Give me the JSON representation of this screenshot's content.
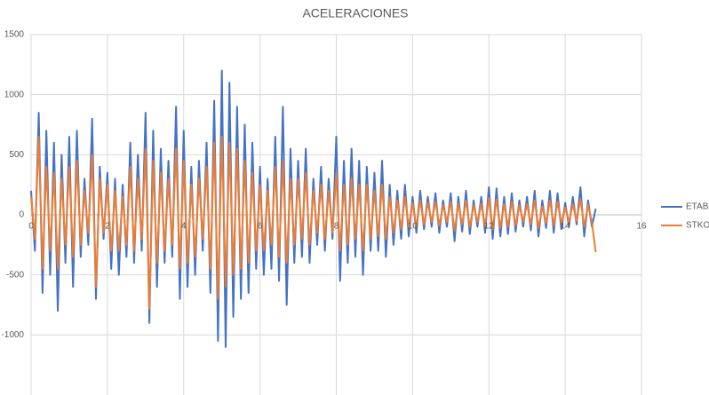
{
  "chart_data": {
    "type": "line",
    "title": "ACELERACIONES",
    "xlim": [
      0,
      16
    ],
    "xticks": [
      0,
      2,
      4,
      6,
      8,
      10,
      12,
      14,
      16
    ],
    "ylim": [
      -1500,
      1500
    ],
    "yticks": [
      -1000,
      -500,
      0,
      500,
      1000,
      1500
    ],
    "grid": true,
    "legend": "right",
    "x": [
      0,
      0.1,
      0.2,
      0.3,
      0.4,
      0.5,
      0.6,
      0.7,
      0.8,
      0.9,
      1,
      1.1,
      1.2,
      1.3,
      1.4,
      1.5,
      1.6,
      1.7,
      1.8,
      1.9,
      2,
      2.1,
      2.2,
      2.3,
      2.4,
      2.5,
      2.6,
      2.7,
      2.8,
      2.9,
      3,
      3.1,
      3.2,
      3.3,
      3.4,
      3.5,
      3.6,
      3.7,
      3.8,
      3.9,
      4,
      4.1,
      4.2,
      4.3,
      4.4,
      4.5,
      4.6,
      4.7,
      4.8,
      4.9,
      5,
      5.1,
      5.2,
      5.3,
      5.4,
      5.5,
      5.6,
      5.7,
      5.8,
      5.9,
      6,
      6.1,
      6.2,
      6.3,
      6.4,
      6.5,
      6.6,
      6.7,
      6.8,
      6.9,
      7,
      7.1,
      7.2,
      7.3,
      7.4,
      7.5,
      7.6,
      7.7,
      7.8,
      7.9,
      8,
      8.1,
      8.2,
      8.3,
      8.4,
      8.5,
      8.6,
      8.7,
      8.8,
      8.9,
      9,
      9.1,
      9.2,
      9.3,
      9.4,
      9.5,
      9.6,
      9.7,
      9.8,
      9.9,
      10,
      10.1,
      10.2,
      10.3,
      10.4,
      10.5,
      10.6,
      10.7,
      10.8,
      10.9,
      11,
      11.1,
      11.2,
      11.3,
      11.4,
      11.5,
      11.6,
      11.7,
      11.8,
      11.9,
      12,
      12.1,
      12.2,
      12.3,
      12.4,
      12.5,
      12.6,
      12.7,
      12.8,
      12.9,
      13,
      13.1,
      13.2,
      13.3,
      13.4,
      13.5,
      13.6,
      13.7,
      13.8,
      13.9,
      14,
      14.1,
      14.2,
      14.3,
      14.4,
      14.5,
      14.6,
      14.7,
      14.8
    ],
    "series": [
      {
        "name": "ETABS",
        "color": "#4472c4",
        "values": [
          200,
          -300,
          850,
          -650,
          700,
          -500,
          600,
          -800,
          500,
          -400,
          650,
          -600,
          700,
          -350,
          300,
          -250,
          800,
          -700,
          400,
          -200,
          350,
          -450,
          300,
          -500,
          250,
          -350,
          600,
          -400,
          500,
          -300,
          850,
          -900,
          700,
          -600,
          550,
          -400,
          450,
          -350,
          900,
          -700,
          700,
          -600,
          400,
          -500,
          450,
          -300,
          600,
          -650,
          950,
          -1050,
          1200,
          -1100,
          1100,
          -850,
          900,
          -700,
          750,
          -650,
          600,
          -450,
          400,
          -500,
          300,
          -450,
          650,
          -550,
          900,
          -750,
          550,
          -400,
          450,
          -350,
          550,
          -400,
          300,
          -250,
          400,
          -300,
          300,
          -200,
          650,
          -550,
          450,
          -400,
          550,
          -350,
          450,
          -500,
          400,
          -300,
          350,
          -300,
          450,
          -350,
          250,
          -250,
          200,
          -200,
          250,
          -180,
          150,
          -150,
          200,
          -120,
          150,
          -100,
          180,
          -150,
          120,
          -100,
          180,
          -220,
          150,
          -140,
          200,
          -160,
          120,
          -100,
          150,
          -150,
          230,
          -200,
          220,
          -180,
          150,
          -160,
          180,
          -140,
          120,
          -100,
          150,
          -130,
          200,
          -180,
          120,
          -110,
          200,
          -150,
          180,
          -120,
          100,
          -100,
          150,
          -80,
          230,
          -180,
          120,
          -100,
          50
        ]
      },
      {
        "name": "STKO",
        "color": "#ed7d31",
        "values": [
          150,
          -200,
          650,
          -450,
          400,
          -300,
          350,
          -450,
          300,
          -250,
          400,
          -350,
          450,
          -250,
          200,
          -150,
          500,
          -600,
          300,
          -150,
          250,
          -300,
          200,
          -300,
          150,
          -250,
          400,
          -300,
          300,
          -200,
          550,
          -780,
          450,
          -400,
          350,
          -300,
          300,
          -250,
          550,
          -450,
          450,
          -400,
          250,
          -350,
          300,
          -200,
          400,
          -450,
          600,
          -700,
          650,
          -600,
          600,
          -500,
          550,
          -450,
          450,
          -400,
          350,
          -300,
          250,
          -300,
          200,
          -250,
          400,
          -350,
          450,
          -400,
          300,
          -250,
          300,
          -200,
          350,
          -250,
          200,
          -150,
          250,
          -200,
          200,
          -150,
          350,
          -300,
          250,
          -250,
          300,
          -200,
          250,
          -300,
          250,
          -200,
          200,
          -180,
          250,
          -200,
          150,
          -150,
          120,
          -120,
          150,
          -100,
          100,
          -100,
          120,
          -80,
          100,
          -60,
          110,
          -90,
          80,
          -60,
          110,
          -130,
          90,
          -80,
          120,
          -100,
          80,
          -60,
          90,
          -90,
          140,
          -120,
          130,
          -110,
          90,
          -100,
          110,
          -90,
          80,
          -60,
          90,
          -80,
          120,
          -110,
          70,
          -70,
          120,
          -90,
          110,
          -70,
          60,
          -60,
          90,
          -50,
          130,
          -100,
          80,
          -60,
          -310
        ]
      }
    ]
  }
}
